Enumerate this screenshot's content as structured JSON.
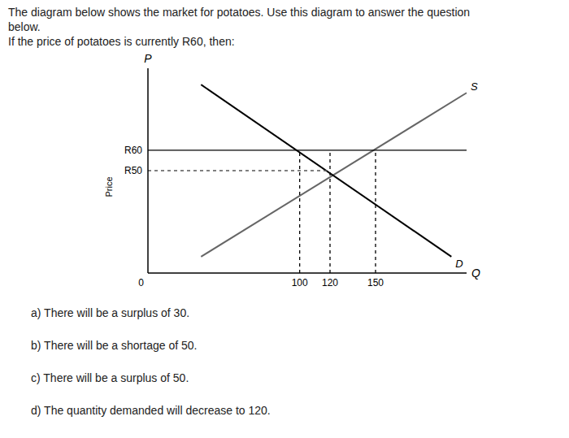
{
  "chart_data": {
    "type": "line",
    "title": [
      "The diagram below shows the market for potatoes. Use this diagram to answer the question",
      "below.",
      "If the price of potatoes is currently R60, then:"
    ],
    "xlabel": "Q",
    "ylabel": "Price",
    "annotations": {
      "y_axis_end": "P",
      "answers": [
        "a)   There will be a surplus of 30.",
        "b)   There will be a shortage of 50.",
        "c)   There will be a surplus of 50.",
        "d)   The quantity demanded will decrease to 120."
      ]
    },
    "xlim": [
      0,
      210
    ],
    "ylim": [
      0,
      100
    ],
    "xticks": [
      0,
      100,
      120,
      150
    ],
    "yticks": [
      {
        "value": 60,
        "label": "R60"
      },
      {
        "value": 50,
        "label": "R50"
      }
    ],
    "grid": false,
    "series": [
      {
        "name": "S",
        "x": [
          35,
          210
        ],
        "values": [
          8,
          88
        ],
        "color": "#666666",
        "line_style": "solid"
      },
      {
        "name": "D",
        "x": [
          35,
          200
        ],
        "values": [
          92,
          8
        ],
        "color": "#000000",
        "line_style": "solid"
      },
      {
        "x": [
          0,
          210
        ],
        "values": [
          60,
          60
        ],
        "color": "#000000",
        "line_style": "solid"
      },
      {
        "x": [
          0,
          120
        ],
        "values": [
          50,
          50
        ],
        "color": "#555555",
        "line_style": "dotted"
      },
      {
        "x": [
          100,
          100
        ],
        "values": [
          0,
          60
        ],
        "color": "#000000",
        "line_style": "dotted"
      },
      {
        "x": [
          120,
          120
        ],
        "values": [
          0,
          60
        ],
        "color": "#000000",
        "line_style": "dotted"
      },
      {
        "x": [
          150,
          150
        ],
        "values": [
          0,
          60
        ],
        "color": "#000000",
        "line_style": "dotted"
      }
    ]
  }
}
